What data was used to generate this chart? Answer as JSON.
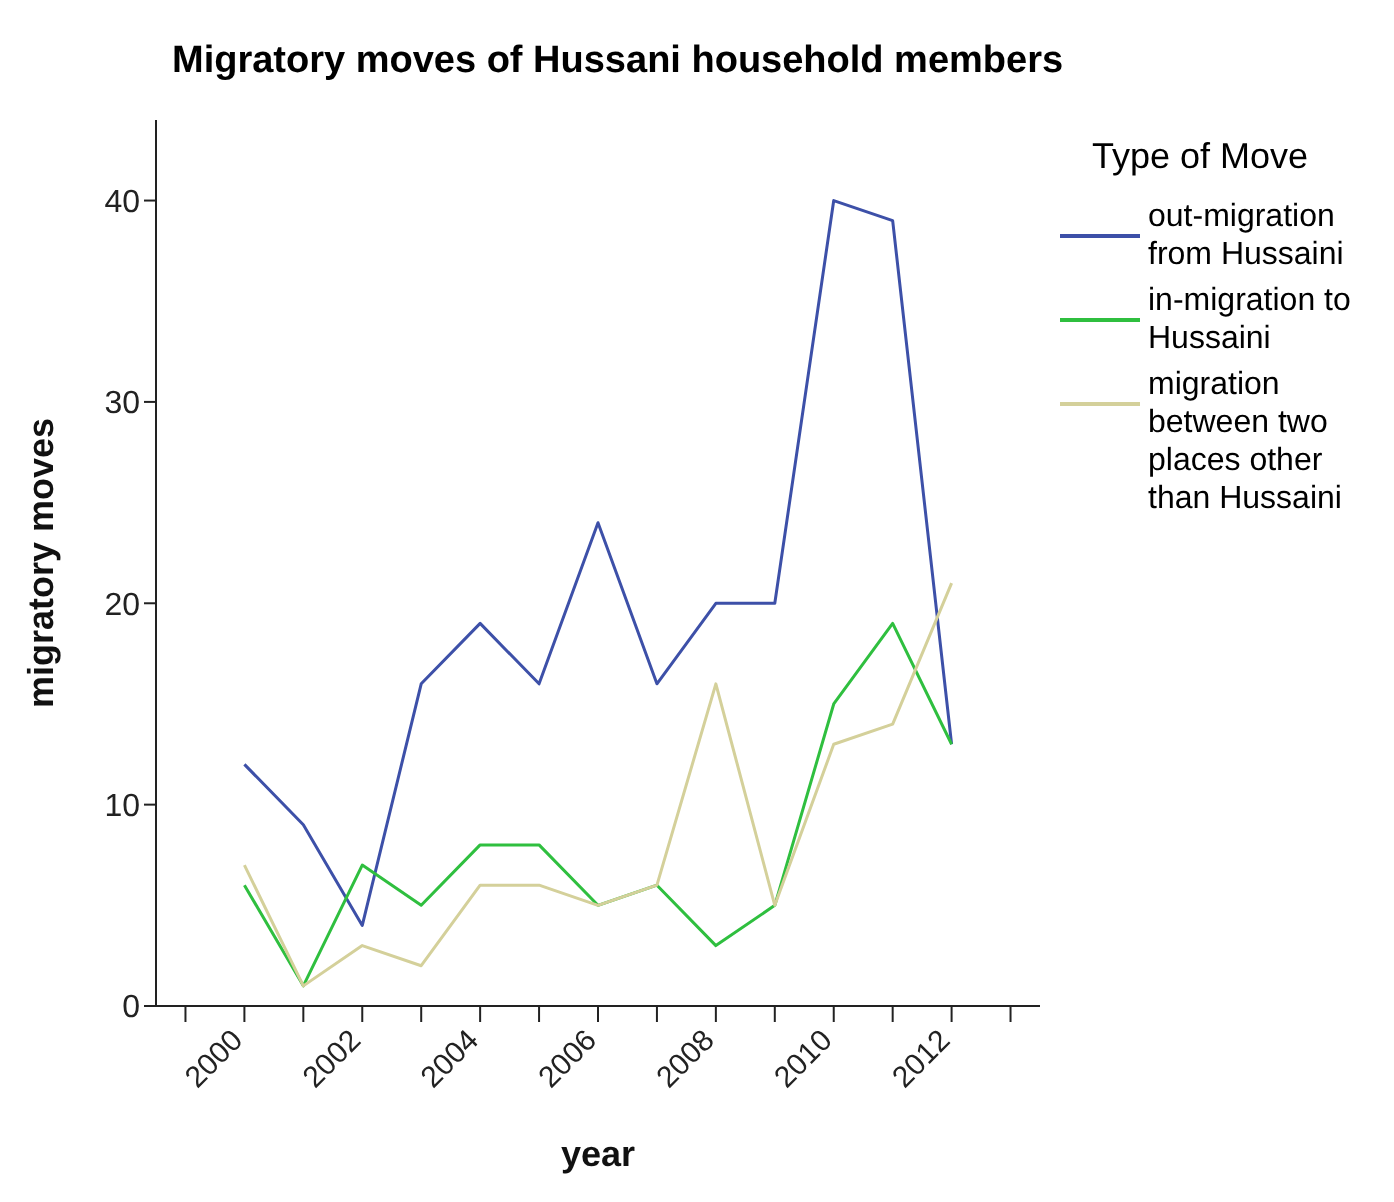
{
  "chart_data": {
    "type": "line",
    "title": "Migratory moves of Hussani household members",
    "xlabel": "year",
    "ylabel": "migratory moves",
    "legend_title": "Type of Move",
    "legend": "top right",
    "grid": false,
    "marker": "none",
    "line_style": "solid",
    "x": [
      2000,
      2001,
      2002,
      2003,
      2004,
      2005,
      2006,
      2007,
      2008,
      2009,
      2010,
      2011,
      2012
    ],
    "xlim": [
      1998.5,
      2013.5
    ],
    "xticks": [
      {
        "value": 1999,
        "label": null
      },
      2000,
      {
        "value": 2001,
        "label": null
      },
      2002,
      {
        "value": 2003,
        "label": null
      },
      2004,
      {
        "value": 2005,
        "label": null
      },
      2006,
      {
        "value": 2007,
        "label": null
      },
      2008,
      {
        "value": 2009,
        "label": null
      },
      2010,
      {
        "value": 2011,
        "label": null
      },
      2012,
      {
        "value": 2013,
        "label": null
      }
    ],
    "ylim": [
      0,
      44
    ],
    "yticks": [
      0,
      10,
      20,
      30,
      40
    ],
    "series": [
      {
        "name": "out-migration from Hussaini",
        "color": "#3d50a8",
        "values": [
          12,
          9,
          4,
          16,
          19,
          16,
          24,
          16,
          20,
          20,
          40,
          39,
          13
        ]
      },
      {
        "name": "in-migration to Hussaini",
        "color": "#2fbf3f",
        "values": [
          6,
          1,
          7,
          5,
          8,
          8,
          5,
          6,
          3,
          5,
          15,
          19,
          13
        ]
      },
      {
        "name": "migration between two places other than Hussaini",
        "color": "#d4d09a",
        "values": [
          7,
          1,
          3,
          2,
          6,
          6,
          5,
          6,
          16,
          5,
          13,
          14,
          21
        ]
      }
    ]
  }
}
